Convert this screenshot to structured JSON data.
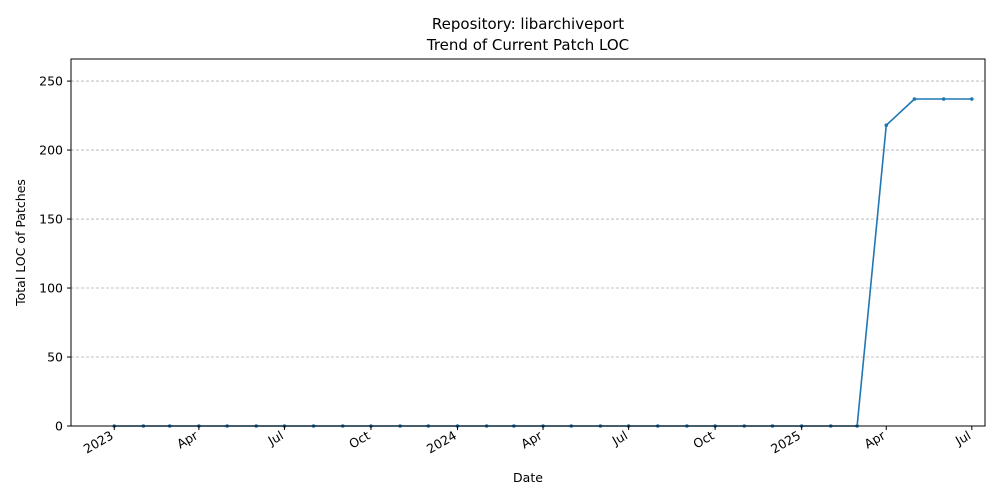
{
  "chart_data": {
    "type": "line",
    "title_line1": "Repository: libarchiveport",
    "title_line2": "Trend of Current Patch LOC",
    "xlabel": "Date",
    "ylabel": "Total LOC of Patches",
    "ylim": [
      0,
      266
    ],
    "yticks": [
      0,
      50,
      100,
      150,
      200,
      250
    ],
    "xlim": [
      "2022-11-16",
      "2025-07-15"
    ],
    "xticks": [
      {
        "date": "2023-01-01",
        "label": "2023"
      },
      {
        "date": "2023-04-01",
        "label": "Apr"
      },
      {
        "date": "2023-07-01",
        "label": "Jul"
      },
      {
        "date": "2023-10-01",
        "label": "Oct"
      },
      {
        "date": "2024-01-01",
        "label": "2024"
      },
      {
        "date": "2024-04-01",
        "label": "Apr"
      },
      {
        "date": "2024-07-01",
        "label": "Jul"
      },
      {
        "date": "2024-10-01",
        "label": "Oct"
      },
      {
        "date": "2025-01-01",
        "label": "2025"
      },
      {
        "date": "2025-04-01",
        "label": "Apr"
      },
      {
        "date": "2025-07-01",
        "label": "Jul"
      }
    ],
    "grid": "y-dashed",
    "color": "#1f77b4",
    "series": [
      {
        "x": [
          "2023-01-01",
          "2023-02-01",
          "2023-03-01",
          "2023-04-01",
          "2023-05-01",
          "2023-06-01",
          "2023-07-01",
          "2023-08-01",
          "2023-09-01",
          "2023-10-01",
          "2023-11-01",
          "2023-12-01",
          "2024-01-01",
          "2024-02-01",
          "2024-03-01",
          "2024-04-01",
          "2024-05-01",
          "2024-06-01",
          "2024-07-01",
          "2024-08-01",
          "2024-09-01",
          "2024-10-01",
          "2024-11-01",
          "2024-12-01",
          "2025-01-01",
          "2025-02-01",
          "2025-03-01",
          "2025-04-01",
          "2025-05-01",
          "2025-06-01",
          "2025-07-01"
        ],
        "values": [
          0,
          0,
          0,
          0,
          0,
          0,
          0,
          0,
          0,
          0,
          0,
          0,
          0,
          0,
          0,
          0,
          0,
          0,
          0,
          0,
          0,
          0,
          0,
          0,
          0,
          0,
          0,
          218,
          237,
          237,
          237
        ]
      }
    ]
  }
}
